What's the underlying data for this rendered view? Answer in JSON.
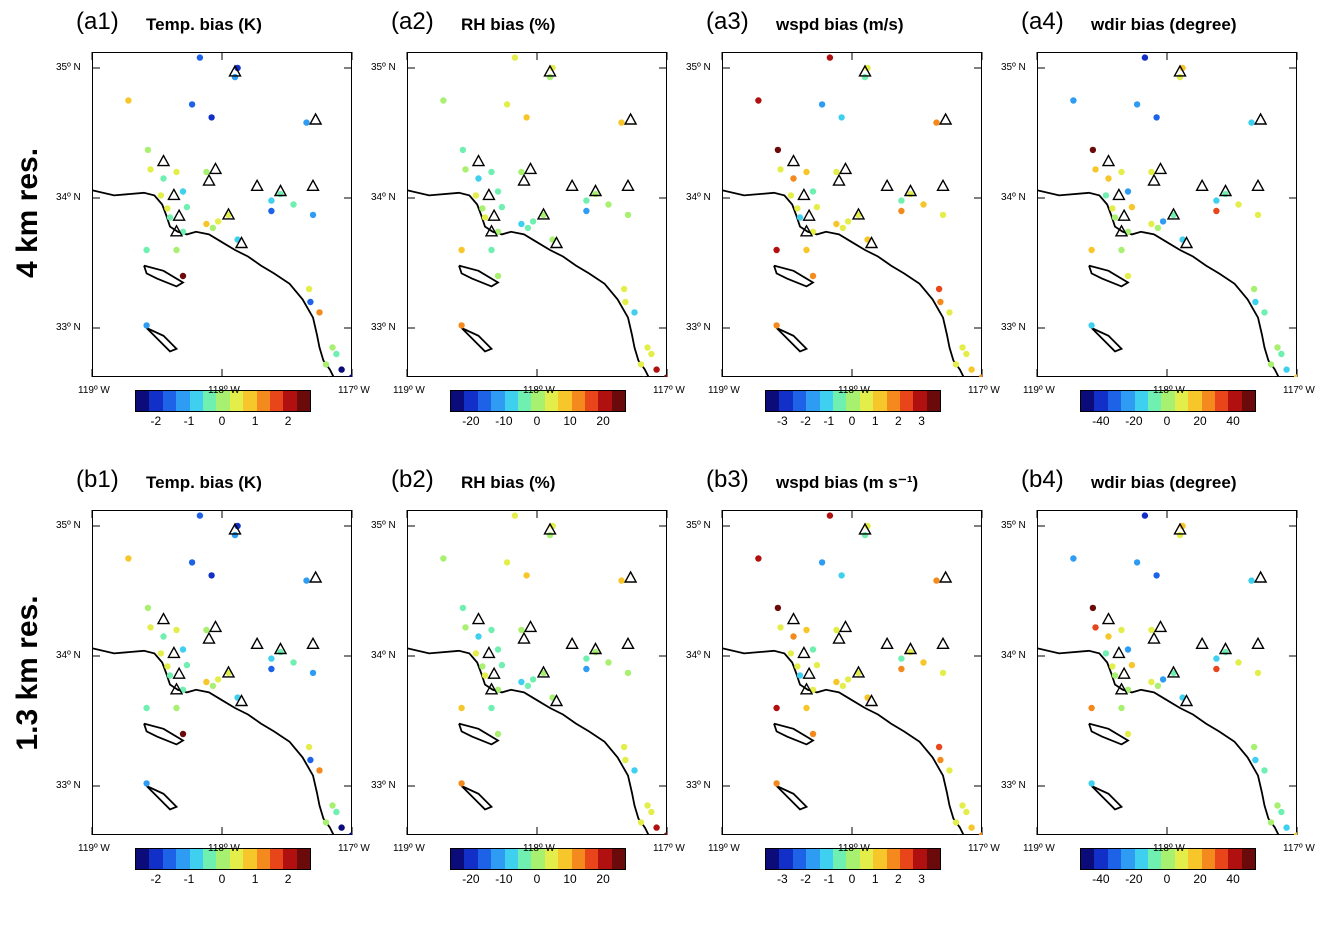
{
  "row_labels": [
    "4 km res.",
    "1.3 km res."
  ],
  "lon_labels": [
    "119º W",
    "118º W",
    "117º W"
  ],
  "lat_labels": [
    "35º N",
    "34º N",
    "33º N"
  ],
  "map_extent": {
    "lon_min": -119.0,
    "lon_max": -117.0,
    "lat_min": 32.5,
    "lat_max": 35.0
  },
  "colormap": [
    "#0b0b7a",
    "#1230c8",
    "#1e62e8",
    "#2e9cf2",
    "#3fd0f0",
    "#6ff0b0",
    "#a8f070",
    "#e3ee4a",
    "#f7c62a",
    "#f48a1e",
    "#e8461a",
    "#b01010",
    "#6a0a0a"
  ],
  "panels": [
    {
      "id": "(a1)",
      "title": "Temp. bias (K)",
      "colorbar_ticks": [
        "-2",
        "-1",
        "0",
        "1",
        "2"
      ]
    },
    {
      "id": "(a2)",
      "title": "RH bias (%)",
      "colorbar_ticks": [
        "-20",
        "-10",
        "0",
        "10",
        "20"
      ]
    },
    {
      "id": "(a3)",
      "title": "wspd bias (m/s)",
      "colorbar_ticks": [
        "-3",
        "-2",
        "-1",
        "0",
        "1",
        "2",
        "3"
      ]
    },
    {
      "id": "(a4)",
      "title": "wdir bias (degree)",
      "colorbar_ticks": [
        "-40",
        "-20",
        "0",
        "20",
        "40"
      ]
    },
    {
      "id": "(b1)",
      "title": "Temp. bias (K)",
      "colorbar_ticks": [
        "-2",
        "-1",
        "0",
        "1",
        "2"
      ]
    },
    {
      "id": "(b2)",
      "title": "RH bias (%)",
      "colorbar_ticks": [
        "-20",
        "-10",
        "0",
        "10",
        "20"
      ]
    },
    {
      "id": "(b3)",
      "title": "wspd bias (m s⁻¹)",
      "colorbar_ticks": [
        "-3",
        "-2",
        "-1",
        "0",
        "1",
        "2",
        "3"
      ]
    },
    {
      "id": "(b4)",
      "title": "wdir bias (degree)",
      "colorbar_ticks": [
        "-40",
        "-20",
        "0",
        "20",
        "40"
      ]
    }
  ],
  "stations": {
    "lonlat": [
      [
        -118.17,
        35.08
      ],
      [
        -117.88,
        35.0
      ],
      [
        -117.9,
        34.93
      ],
      [
        -118.72,
        34.75
      ],
      [
        -118.23,
        34.72
      ],
      [
        -118.08,
        34.62
      ],
      [
        -117.35,
        34.58
      ],
      [
        -118.57,
        34.37
      ],
      [
        -118.35,
        34.2
      ],
      [
        -118.55,
        34.22
      ],
      [
        -118.45,
        34.15
      ],
      [
        -118.12,
        34.2
      ],
      [
        -118.47,
        34.02
      ],
      [
        -118.3,
        34.05
      ],
      [
        -117.55,
        34.03
      ],
      [
        -117.62,
        33.98
      ],
      [
        -117.45,
        33.95
      ],
      [
        -118.42,
        33.92
      ],
      [
        -118.27,
        33.93
      ],
      [
        -118.4,
        33.85
      ],
      [
        -118.12,
        33.8
      ],
      [
        -118.03,
        33.82
      ],
      [
        -117.95,
        33.87
      ],
      [
        -117.62,
        33.9
      ],
      [
        -117.3,
        33.87
      ],
      [
        -118.07,
        33.77
      ],
      [
        -118.3,
        33.74
      ],
      [
        -117.88,
        33.68
      ],
      [
        -118.58,
        33.6
      ],
      [
        -118.35,
        33.6
      ],
      [
        -118.3,
        33.4
      ],
      [
        -117.33,
        33.3
      ],
      [
        -117.32,
        33.2
      ],
      [
        -117.25,
        33.12
      ],
      [
        -118.58,
        33.02
      ],
      [
        -117.15,
        32.85
      ],
      [
        -117.12,
        32.8
      ],
      [
        -117.2,
        32.72
      ],
      [
        -117.08,
        32.68
      ],
      [
        -117.18,
        32.6
      ],
      [
        -117.0,
        32.62
      ],
      [
        -118.0,
        32.5
      ]
    ],
    "temp": [
      -1.7,
      -2.3,
      -1.5,
      1.1,
      -2.0,
      -2.5,
      -1.6,
      0.2,
      0.4,
      0.3,
      -0.3,
      -0.1,
      0.6,
      -0.8,
      -0.6,
      -0.8,
      -0.5,
      0.4,
      -0.3,
      -0.6,
      0.9,
      0.5,
      0.3,
      -1.9,
      -1.6,
      -0.2,
      -0.4,
      -0.7,
      -0.5,
      0.1,
      2.6,
      0.3,
      -1.8,
      1.6,
      -1.6,
      0.1,
      -0.4,
      -0.2,
      -2.6,
      0.1,
      -3.0,
      0.2
    ],
    "rh": [
      3,
      5,
      -2,
      1,
      5,
      7,
      8,
      -4,
      -3,
      -2,
      -8,
      2,
      4,
      -6,
      -2,
      -4,
      2,
      2,
      -5,
      3,
      -8,
      -3,
      0,
      -14,
      -1,
      -3,
      -1,
      -2,
      8,
      -4,
      -2,
      6,
      4,
      -10,
      16,
      6,
      3,
      6,
      23,
      4,
      30,
      0
    ],
    "wspd": [
      2.8,
      0.6,
      -0.5,
      2.5,
      -1.5,
      -1.2,
      1.8,
      3.4,
      1.0,
      0.3,
      1.6,
      0.5,
      0.8,
      -0.4,
      0.4,
      -0.6,
      1.0,
      0.5,
      0.4,
      -0.9,
      1.1,
      0.3,
      0.8,
      1.5,
      0.5,
      0.4,
      0.3,
      1.0,
      2.5,
      1.0,
      1.6,
      2.4,
      1.8,
      0.6,
      1.5,
      0.4,
      0.6,
      0.3,
      0.9,
      0.1,
      1.4,
      0.0
    ],
    "wdir": [
      -42,
      12,
      8,
      -22,
      -25,
      -29,
      -16,
      52,
      9,
      13,
      17,
      6,
      -10,
      -22,
      -9,
      -16,
      11,
      6,
      12,
      -2,
      9,
      -23,
      -4,
      32,
      4,
      0,
      -3,
      -15,
      17,
      -1,
      5,
      2,
      -13,
      -4,
      -16,
      -3,
      -8,
      -2,
      -18,
      -20,
      14,
      -30
    ],
    "wdir_b_overrides": {
      "28": 20,
      "9": 30
    },
    "triangles": [
      [
        -117.9,
        34.97
      ],
      [
        -117.28,
        34.6
      ],
      [
        -118.45,
        34.28
      ],
      [
        -118.05,
        34.22
      ],
      [
        -118.1,
        34.13
      ],
      [
        -118.37,
        34.02
      ],
      [
        -117.73,
        34.09
      ],
      [
        -117.55,
        34.05
      ],
      [
        -117.3,
        34.09
      ],
      [
        -118.33,
        33.86
      ],
      [
        -117.95,
        33.87
      ],
      [
        -118.35,
        33.74
      ],
      [
        -117.85,
        33.65
      ]
    ]
  }
}
